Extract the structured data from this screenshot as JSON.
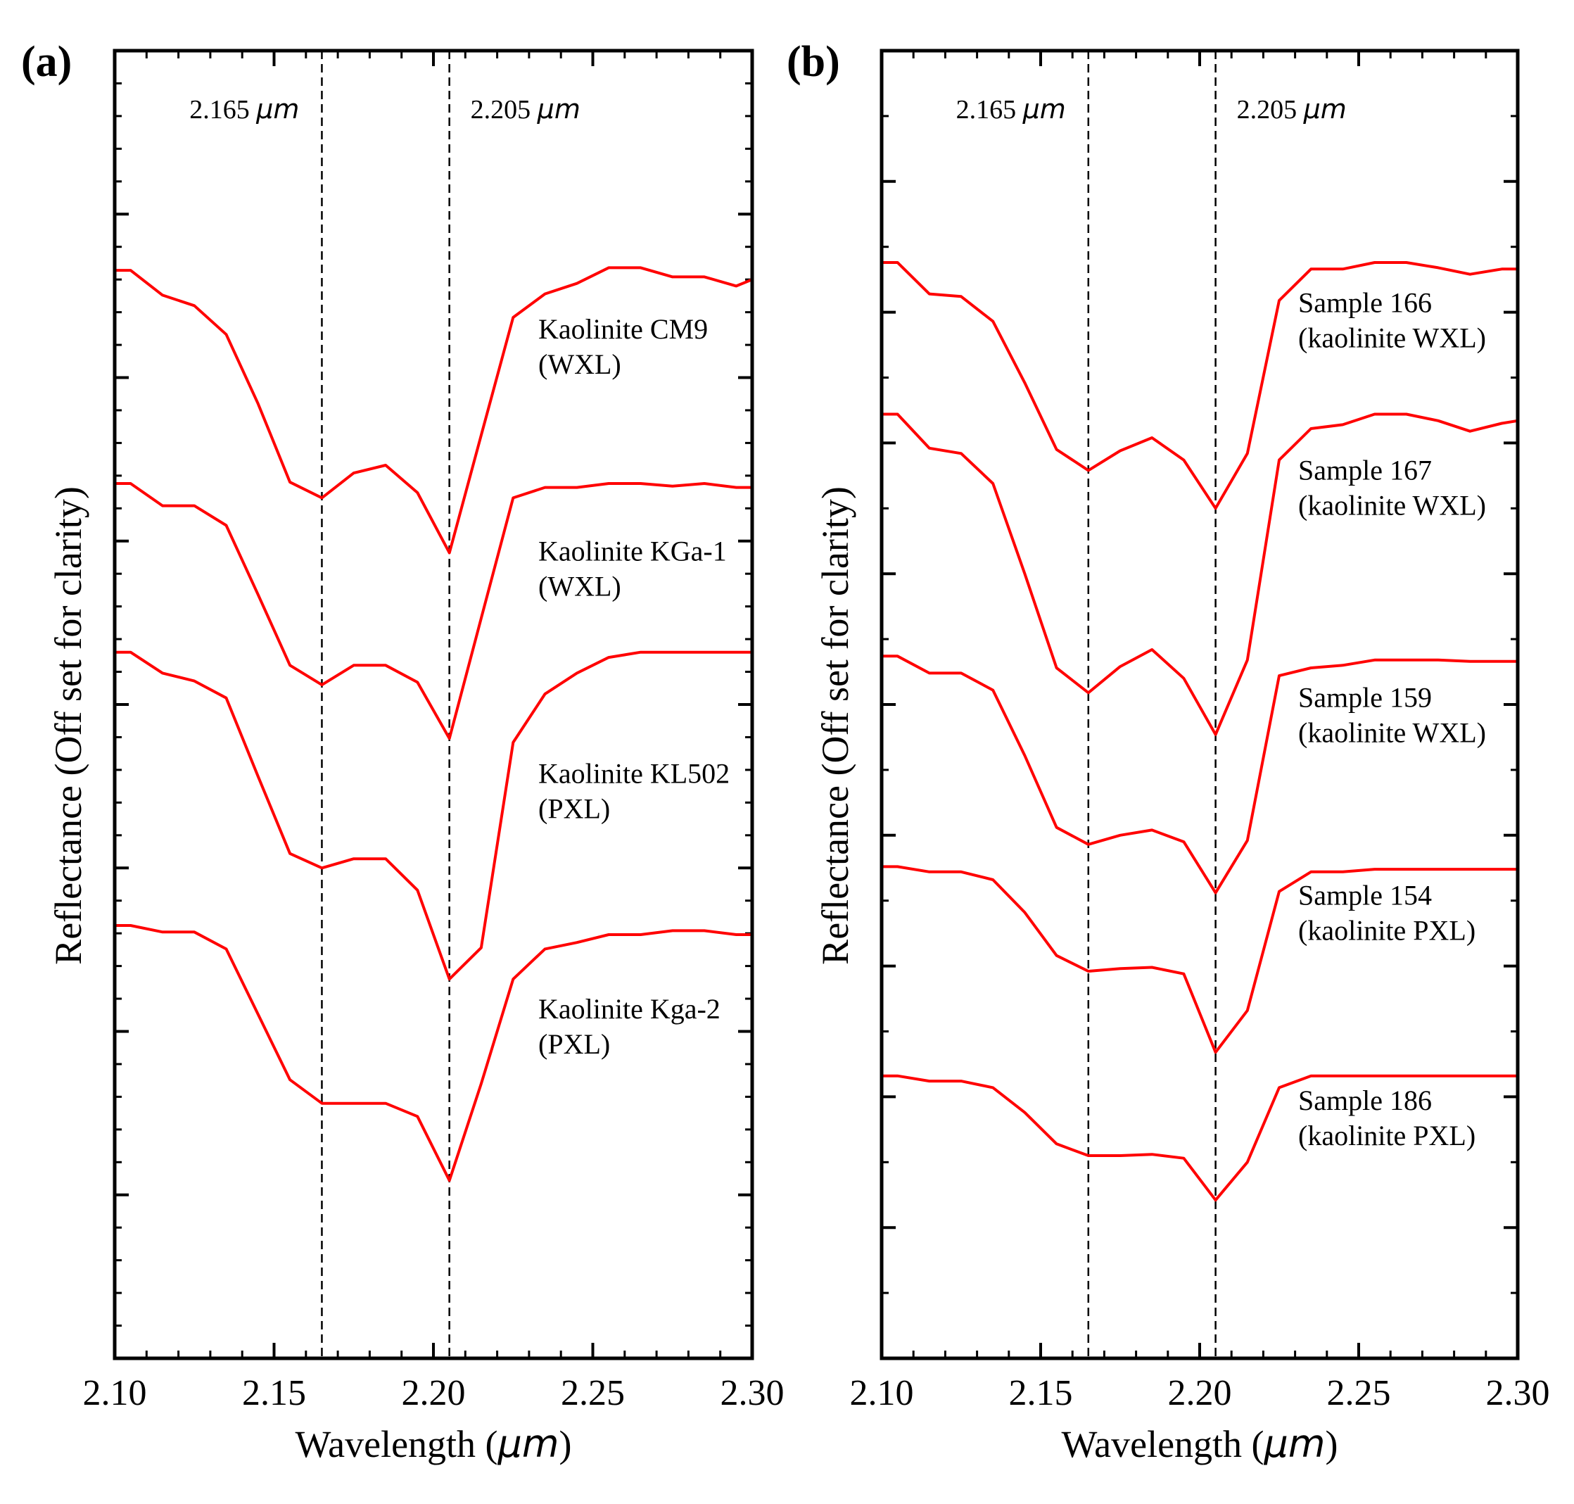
{
  "figure": {
    "background": "#ffffff",
    "line_color": "#ff0000",
    "axis_color": "#000000"
  },
  "chart_data": [
    {
      "type": "line",
      "panel_label": "(a)",
      "xlabel": "Wavelength (",
      "xlabel_unit": "μm",
      "xlabel_close": ")",
      "ylabel": "Reflectance (Off set for clarity)",
      "xlim": [
        2.1,
        2.3
      ],
      "ylim": [
        0,
        1
      ],
      "xticks": [
        2.1,
        2.15,
        2.2,
        2.25,
        2.3
      ],
      "xtick_labels": [
        "2.10",
        "2.15",
        "2.20",
        "2.25",
        "2.30"
      ],
      "y_major_ticks": 8,
      "y_minor_ticks": 40,
      "reference_lines": [
        {
          "x": 2.165,
          "label_value": "2.165 ",
          "label_unit": "μm",
          "label_side": "left"
        },
        {
          "x": 2.205,
          "label_value": "2.205 ",
          "label_unit": "μm",
          "label_side": "right"
        }
      ],
      "x": [
        2.1,
        2.105,
        2.115,
        2.125,
        2.135,
        2.145,
        2.155,
        2.165,
        2.175,
        2.185,
        2.195,
        2.205,
        2.215,
        2.225,
        2.235,
        2.245,
        2.255,
        2.265,
        2.275,
        2.285,
        2.295,
        2.3
      ],
      "series": [
        {
          "name": "Kaolinite CM9",
          "name_line2": "(WXL)",
          "label_y": 0.78,
          "values": [
            0.832,
            0.832,
            0.813,
            0.805,
            0.783,
            0.73,
            0.67,
            0.658,
            0.677,
            0.683,
            0.662,
            0.616,
            0.706,
            0.796,
            0.814,
            0.822,
            0.834,
            0.834,
            0.827,
            0.827,
            0.82,
            0.825
          ]
        },
        {
          "name": "Kaolinite KGa-1",
          "name_line2": "(WXL)",
          "label_y": 0.61,
          "values": [
            0.669,
            0.669,
            0.652,
            0.652,
            0.637,
            0.584,
            0.53,
            0.515,
            0.53,
            0.53,
            0.517,
            0.474,
            0.566,
            0.658,
            0.666,
            0.666,
            0.669,
            0.669,
            0.667,
            0.669,
            0.666,
            0.666
          ]
        },
        {
          "name": "Kaolinite KL502",
          "name_line2": "(PXL)",
          "label_y": 0.44,
          "values": [
            0.54,
            0.54,
            0.524,
            0.518,
            0.505,
            0.445,
            0.386,
            0.375,
            0.382,
            0.382,
            0.358,
            0.29,
            0.314,
            0.471,
            0.508,
            0.524,
            0.536,
            0.54,
            0.54,
            0.54,
            0.54,
            0.54
          ]
        },
        {
          "name": "Kaolinite Kga-2",
          "name_line2": "(PXL)",
          "label_y": 0.26,
          "values": [
            0.331,
            0.331,
            0.326,
            0.326,
            0.313,
            0.263,
            0.213,
            0.195,
            0.195,
            0.195,
            0.185,
            0.136,
            0.21,
            0.29,
            0.313,
            0.318,
            0.324,
            0.324,
            0.327,
            0.327,
            0.324,
            0.324
          ]
        }
      ]
    },
    {
      "type": "line",
      "panel_label": "(b)",
      "xlabel": "Wavelength (",
      "xlabel_unit": "μm",
      "xlabel_close": ")",
      "ylabel": "Reflectance (Off set for clarity)",
      "xlim": [
        2.1,
        2.3
      ],
      "ylim": [
        0,
        1
      ],
      "xticks": [
        2.1,
        2.15,
        2.2,
        2.25,
        2.3
      ],
      "xtick_labels": [
        "2.10",
        "2.15",
        "2.20",
        "2.25",
        "2.30"
      ],
      "y_major_ticks": 10,
      "y_minor_ticks": 20,
      "reference_lines": [
        {
          "x": 2.165,
          "label_value": "2.165 ",
          "label_unit": "μm",
          "label_side": "left"
        },
        {
          "x": 2.205,
          "label_value": "2.205 ",
          "label_unit": "μm",
          "label_side": "right"
        }
      ],
      "x": [
        2.1,
        2.105,
        2.115,
        2.125,
        2.135,
        2.145,
        2.155,
        2.165,
        2.175,
        2.185,
        2.195,
        2.205,
        2.215,
        2.225,
        2.235,
        2.245,
        2.255,
        2.265,
        2.275,
        2.285,
        2.295,
        2.3
      ],
      "series": [
        {
          "name": "Sample 166",
          "name_line2": "(kaolinite WXL)",
          "label_y": 0.8,
          "values": [
            0.838,
            0.838,
            0.814,
            0.812,
            0.793,
            0.746,
            0.695,
            0.679,
            0.694,
            0.704,
            0.687,
            0.65,
            0.692,
            0.809,
            0.833,
            0.833,
            0.838,
            0.838,
            0.834,
            0.829,
            0.833,
            0.833
          ]
        },
        {
          "name": "Sample 167",
          "name_line2": "(kaolinite WXL)",
          "label_y": 0.672,
          "values": [
            0.722,
            0.722,
            0.696,
            0.692,
            0.669,
            0.6,
            0.528,
            0.509,
            0.529,
            0.542,
            0.52,
            0.477,
            0.534,
            0.687,
            0.711,
            0.714,
            0.722,
            0.722,
            0.717,
            0.709,
            0.715,
            0.717
          ]
        },
        {
          "name": "Sample 159",
          "name_line2": "(kaolinite WXL)",
          "label_y": 0.498,
          "values": [
            0.537,
            0.537,
            0.524,
            0.524,
            0.511,
            0.461,
            0.406,
            0.393,
            0.4,
            0.404,
            0.395,
            0.356,
            0.396,
            0.522,
            0.528,
            0.53,
            0.534,
            0.534,
            0.534,
            0.533,
            0.533,
            0.533
          ]
        },
        {
          "name": "Sample 154",
          "name_line2": "(kaolinite PXL)",
          "label_y": 0.347,
          "values": [
            0.376,
            0.376,
            0.372,
            0.372,
            0.366,
            0.341,
            0.308,
            0.296,
            0.298,
            0.299,
            0.294,
            0.234,
            0.266,
            0.357,
            0.372,
            0.372,
            0.374,
            0.374,
            0.374,
            0.374,
            0.374,
            0.374
          ]
        },
        {
          "name": "Sample 186",
          "name_line2": "(kaolinite PXL)",
          "label_y": 0.19,
          "values": [
            0.216,
            0.216,
            0.212,
            0.212,
            0.207,
            0.188,
            0.164,
            0.155,
            0.155,
            0.156,
            0.153,
            0.121,
            0.15,
            0.207,
            0.216,
            0.216,
            0.216,
            0.216,
            0.216,
            0.216,
            0.216,
            0.216
          ]
        }
      ]
    }
  ]
}
